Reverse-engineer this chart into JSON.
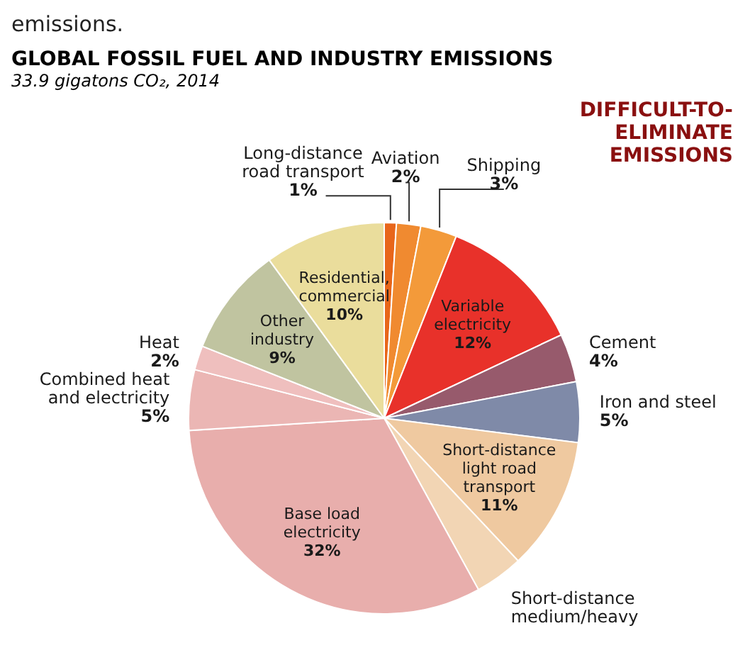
{
  "chart_data": {
    "type": "pie",
    "title": "GLOBAL FOSSIL FUEL AND INDUSTRY EMISSIONS",
    "subtitle": "33.9 gigatons CO₂, 2014",
    "annotations": [
      "emissions.",
      "DIFFICULT-TO-ELIMINATE EMISSIONS"
    ],
    "categories": [
      "Long-distance road transport",
      "Aviation",
      "Shipping",
      "Variable electricity",
      "Cement",
      "Iron and steel",
      "Short-distance light road transport",
      "Short-distance medium/heavy",
      "Base load electricity",
      "Combined heat and electricity",
      "Heat",
      "Other industry",
      "Residential, commercial"
    ],
    "values": [
      1,
      2,
      3,
      12,
      4,
      5,
      11,
      4,
      32,
      5,
      2,
      9,
      10
    ],
    "value_labels": [
      "1%",
      "2%",
      "3%",
      "12%",
      "4%",
      "5%",
      "11%",
      null,
      "32%",
      "5%",
      "2%",
      "9%",
      "10%"
    ],
    "colors": [
      "#e8661a",
      "#f08a30",
      "#f39a3a",
      "#e8312a",
      "#975a6c",
      "#7f8aa8",
      "#efc9a0",
      "#f2d5b4",
      "#e8aeac",
      "#ebb6b4",
      "#efbfbe",
      "#c0c4a0",
      "#eadd9c"
    ]
  }
}
